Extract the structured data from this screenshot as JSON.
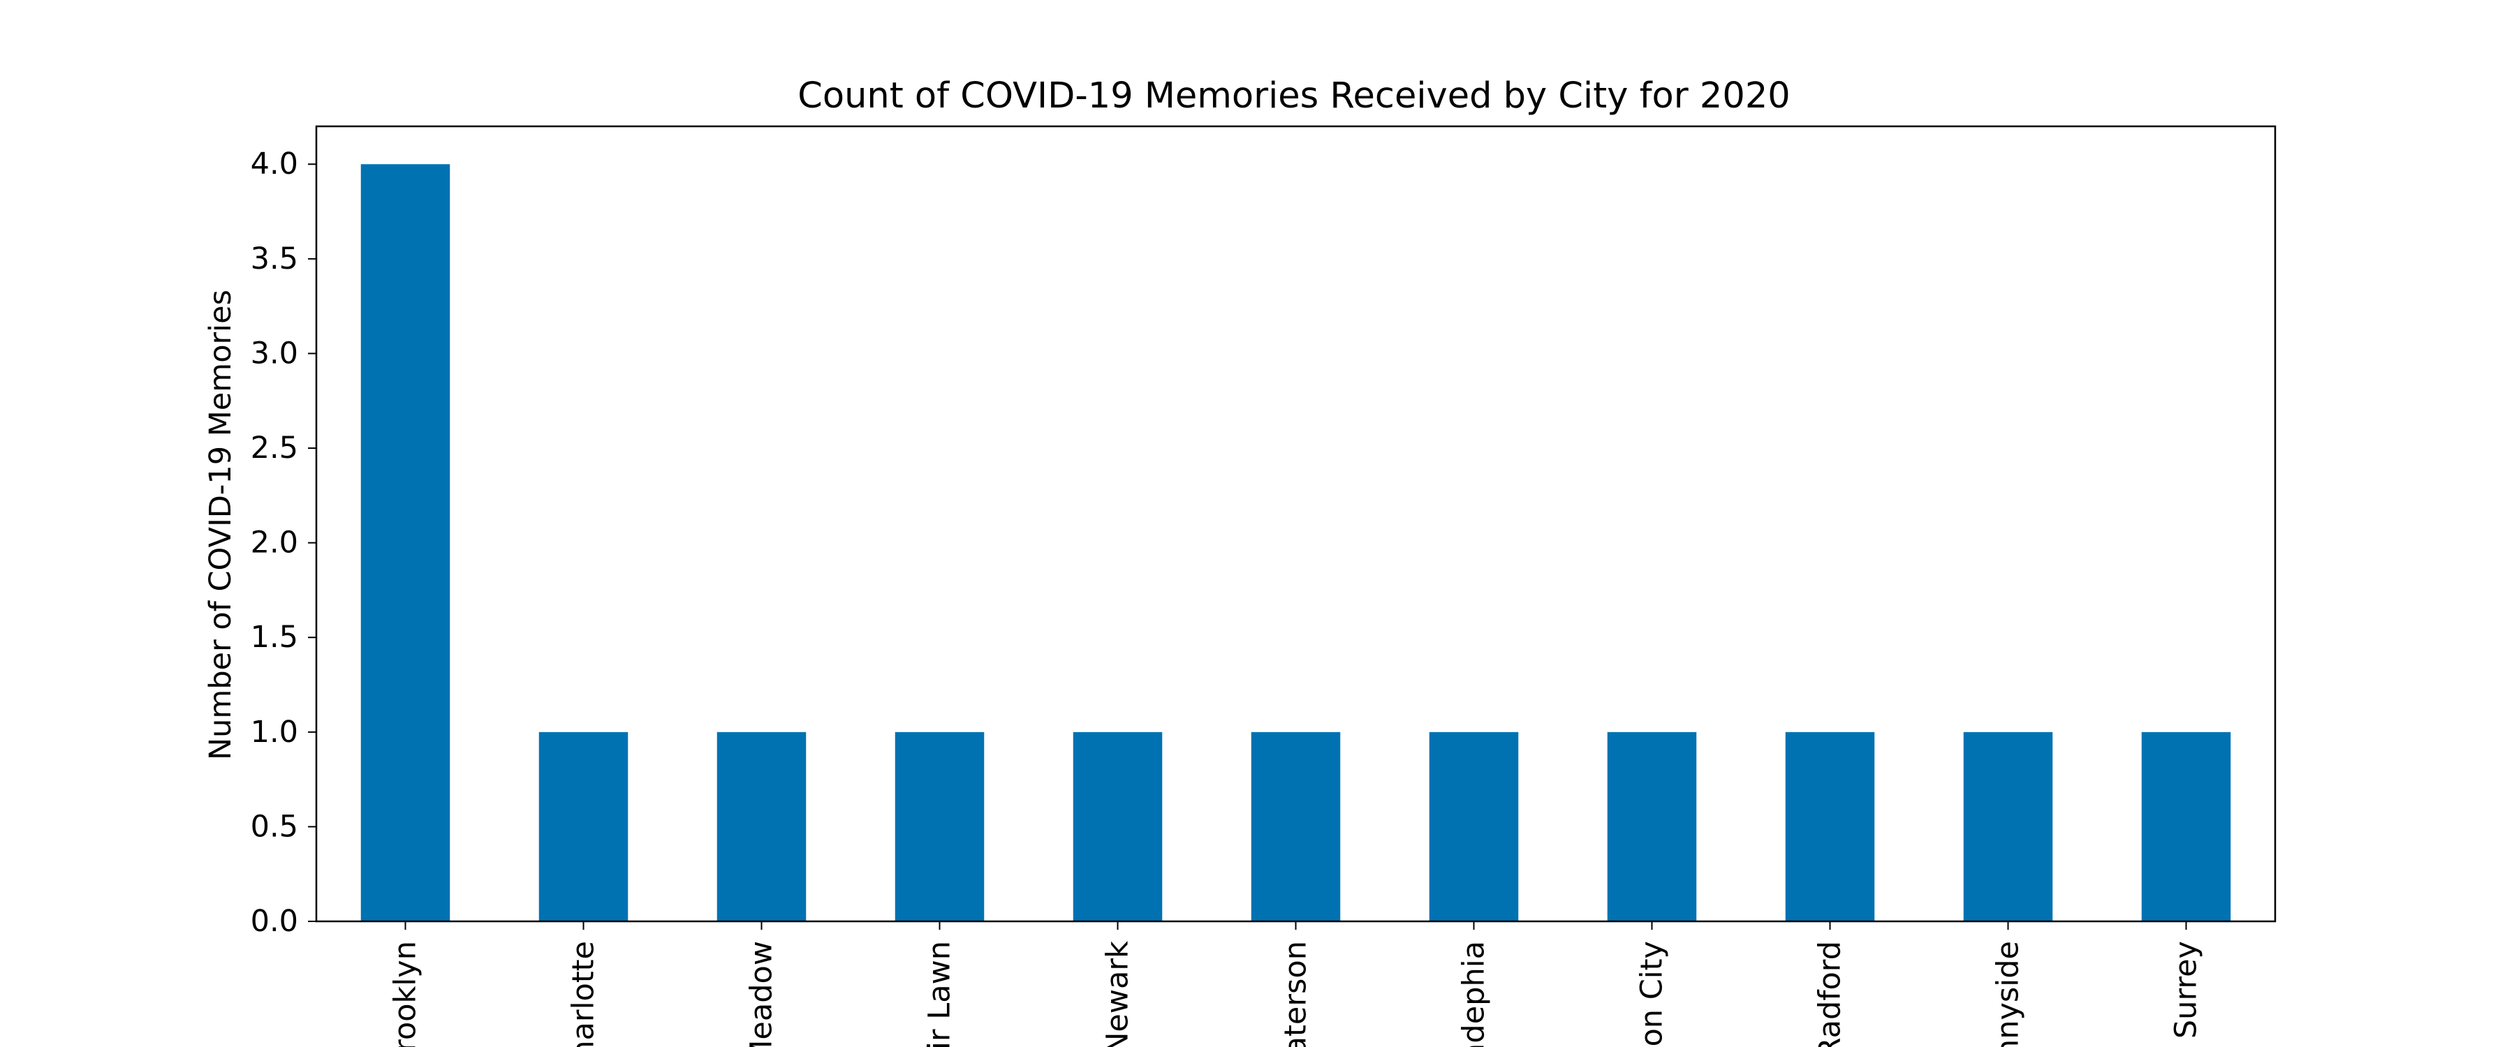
{
  "chart_data": {
    "type": "bar",
    "title": "Count of COVID-19 Memories Received by City for 2020",
    "xlabel": "",
    "ylabel": "Number of COVID-19 Memories",
    "categories": [
      "rooklyn",
      "narlotte",
      "Meadow",
      "ir Lawn",
      "Newark",
      "aterson",
      "adephia",
      "zon City",
      "Radford",
      "nnyside",
      "Surrey"
    ],
    "values": [
      4,
      1,
      1,
      1,
      1,
      1,
      1,
      1,
      1,
      1,
      1
    ],
    "ylim": [
      0,
      4.2
    ],
    "yticks": [
      "0.0",
      "0.5",
      "1.0",
      "1.5",
      "2.0",
      "2.5",
      "3.0",
      "3.5",
      "4.0"
    ],
    "grid": false,
    "legend": "none",
    "bar_color": "#0072b2"
  }
}
